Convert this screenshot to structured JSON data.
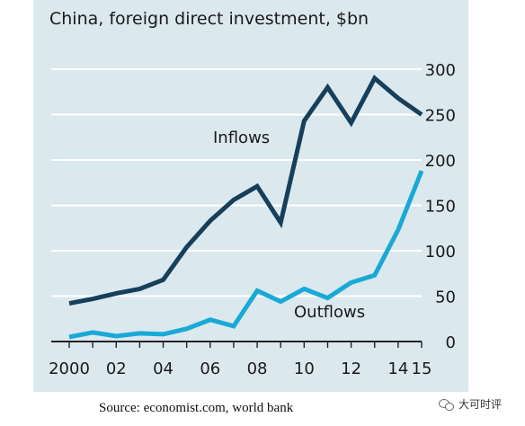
{
  "title": "China, foreign direct investment, $bn",
  "source": "Source: economist.com, world bank",
  "watermark": "大可时评",
  "colors": {
    "background": "#dbe8ee",
    "inflows": "#173f5a",
    "outflows": "#19a9d6",
    "grid": "#ffffff",
    "axis": "#222222"
  },
  "chart_data": {
    "type": "line",
    "title": "China, foreign direct investment, $bn",
    "xlabel": "",
    "ylabel": "",
    "x": [
      2000,
      2001,
      2002,
      2003,
      2004,
      2005,
      2006,
      2007,
      2008,
      2009,
      2010,
      2011,
      2012,
      2013,
      2014,
      2015
    ],
    "x_tick_labels": [
      "2000",
      "02",
      "04",
      "06",
      "08",
      "10",
      "12",
      "14",
      "15"
    ],
    "x_tick_values": [
      2000,
      2002,
      2004,
      2006,
      2008,
      2010,
      2012,
      2014,
      2015
    ],
    "ylim": [
      0,
      300
    ],
    "y_ticks": [
      0,
      50,
      100,
      150,
      200,
      250,
      300
    ],
    "y_axis_position": "right",
    "grid": true,
    "series": [
      {
        "name": "Inflows",
        "values": [
          42,
          47,
          53,
          58,
          68,
          104,
          133,
          156,
          171,
          131,
          243,
          280,
          241,
          290,
          268,
          250
        ]
      },
      {
        "name": "Outflows",
        "values": [
          5,
          10,
          6,
          9,
          8,
          14,
          24,
          17,
          56,
          44,
          58,
          48,
          65,
          73,
          123,
          188
        ]
      }
    ]
  }
}
